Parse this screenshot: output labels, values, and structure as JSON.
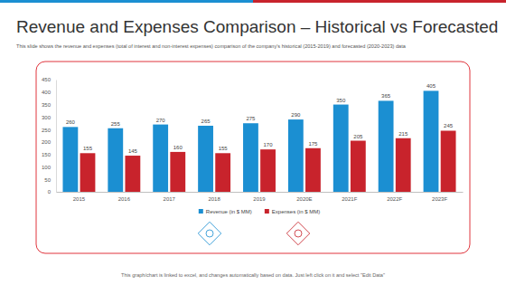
{
  "chart_data": {
    "type": "bar",
    "title": "Revenue and Expenses Comparison – Historical vs Forecasted",
    "subtitle": "This slide shows the revenue and expenses (total of interest and non-interest expenses) comparison of the company's historical (2015-2019) and forecasted (2020-2023) data",
    "annotations": [
      "This graph/chart is linked to excel, and changes automatically based on data. Just left click on it and select \"Edit Data\""
    ],
    "categories": [
      "2015",
      "2016",
      "2017",
      "2018",
      "2019",
      "2020E",
      "2021F",
      "2022F",
      "2023F"
    ],
    "series": [
      {
        "name": "Revenue (in $ MM)",
        "color": "#1b8fd2",
        "values": [
          260,
          255,
          270,
          265,
          275,
          290,
          350,
          365,
          405
        ]
      },
      {
        "name": "Expenses (in $ MM)",
        "color": "#c8232c",
        "values": [
          155,
          145,
          160,
          155,
          170,
          175,
          205,
          215,
          245
        ]
      }
    ],
    "ylim": [
      0,
      450
    ],
    "yticks": [
      0,
      50,
      100,
      150,
      200,
      250,
      300,
      350,
      400,
      450
    ],
    "grid": false,
    "legend": "bottom",
    "data_labels": true
  }
}
